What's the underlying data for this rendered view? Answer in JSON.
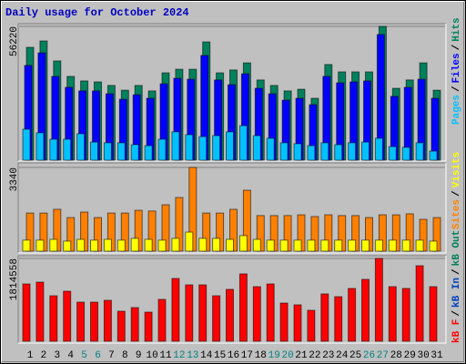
{
  "title": "Daily usage for October 2024",
  "categories": [
    "1",
    "2",
    "3",
    "4",
    "5",
    "6",
    "7",
    "8",
    "9",
    "10",
    "11",
    "12",
    "13",
    "14",
    "15",
    "16",
    "17",
    "18",
    "19",
    "20",
    "21",
    "22",
    "23",
    "24",
    "25",
    "26",
    "27",
    "28",
    "29",
    "30",
    "31"
  ],
  "category_colors": [
    "#000000",
    "#000000",
    "#000000",
    "#000000",
    "#008080",
    "#008080",
    "#000000",
    "#000000",
    "#000000",
    "#000000",
    "#000000",
    "#008080",
    "#008080",
    "#000000",
    "#000000",
    "#000000",
    "#000000",
    "#000000",
    "#008080",
    "#008080",
    "#000000",
    "#000000",
    "#000000",
    "#000000",
    "#000000",
    "#008080",
    "#008080",
    "#000000",
    "#000000",
    "#000000",
    "#000000"
  ],
  "chart_data": [
    {
      "type": "bar",
      "legend_separator": "/",
      "ylim": [
        0,
        56220
      ],
      "yticks": [
        56220
      ],
      "series": [
        {
          "name": "Pages",
          "color": "#00c0ff",
          "values": [
            13000,
            11500,
            8800,
            8800,
            11100,
            7600,
            7300,
            7300,
            6500,
            6100,
            8800,
            11900,
            10700,
            9900,
            10300,
            11900,
            14500,
            10300,
            9200,
            7300,
            6900,
            6100,
            7300,
            6500,
            7300,
            7600,
            9200,
            5700,
            5400,
            7300,
            3800
          ]
        },
        {
          "name": "Files",
          "color": "#0000ff",
          "values": [
            39800,
            45100,
            35200,
            30600,
            29100,
            29100,
            27900,
            25600,
            27500,
            26000,
            32100,
            34400,
            34000,
            44000,
            33700,
            31700,
            36300,
            30200,
            27900,
            25200,
            26000,
            23300,
            35200,
            32500,
            32900,
            33300,
            52800,
            26800,
            30600,
            34000,
            26000
          ]
        },
        {
          "name": "Hits",
          "color": "#00805c",
          "values": [
            47420,
            50100,
            41700,
            35200,
            33300,
            32900,
            31400,
            29400,
            31400,
            29100,
            36700,
            38200,
            38200,
            49700,
            36700,
            37900,
            40900,
            33700,
            31400,
            29100,
            29800,
            26000,
            40200,
            37100,
            37100,
            37100,
            56220,
            30200,
            33700,
            40900,
            29400
          ]
        }
      ]
    },
    {
      "type": "bar",
      "legend_separator": "/",
      "ylim": [
        0,
        3340
      ],
      "yticks": [
        3340
      ],
      "series": [
        {
          "name": "Sites",
          "color": "#ff8000",
          "values": [
            1520,
            1520,
            1670,
            1340,
            1560,
            1340,
            1520,
            1520,
            1630,
            1600,
            1850,
            2140,
            3340,
            1520,
            1520,
            1670,
            2430,
            1420,
            1420,
            1420,
            1450,
            1380,
            1450,
            1420,
            1420,
            1340,
            1450,
            1450,
            1490,
            1270,
            1340
          ]
        },
        {
          "name": "Visits",
          "color": "#ffff00",
          "values": [
            440,
            440,
            470,
            400,
            470,
            440,
            470,
            440,
            510,
            470,
            440,
            510,
            760,
            510,
            510,
            470,
            620,
            470,
            440,
            440,
            440,
            440,
            440,
            440,
            440,
            440,
            440,
            440,
            440,
            440,
            400
          ]
        }
      ]
    },
    {
      "type": "bar",
      "legend_separator": "/",
      "ylim": [
        0,
        1814558
      ],
      "yticks": [
        1814558
      ],
      "series": [
        {
          "name": "kB F",
          "color": "#ff0000",
          "values": [
            1256000,
            1296000,
            997000,
            1097000,
            857000,
            857000,
            897000,
            658000,
            738000,
            638000,
            917000,
            1376000,
            1236000,
            1236000,
            997000,
            1137000,
            1476000,
            1196000,
            1256000,
            837000,
            798000,
            678000,
            1037000,
            977000,
            1157000,
            1356000,
            1814558,
            1196000,
            1157000,
            1655000,
            1196000
          ]
        },
        {
          "name": "kB In",
          "color": "#0040c0",
          "values": [
            null,
            null,
            null,
            null,
            null,
            null,
            null,
            null,
            null,
            null,
            null,
            null,
            null,
            null,
            null,
            null,
            null,
            null,
            null,
            null,
            null,
            null,
            null,
            null,
            null,
            null,
            null,
            null,
            null,
            null,
            null
          ]
        },
        {
          "name": "kB Out",
          "color": "#00805c",
          "values": [
            null,
            null,
            null,
            null,
            null,
            null,
            null,
            null,
            null,
            null,
            null,
            null,
            null,
            null,
            null,
            null,
            null,
            null,
            null,
            null,
            null,
            null,
            null,
            null,
            null,
            null,
            null,
            null,
            null,
            null,
            null
          ]
        }
      ]
    }
  ]
}
